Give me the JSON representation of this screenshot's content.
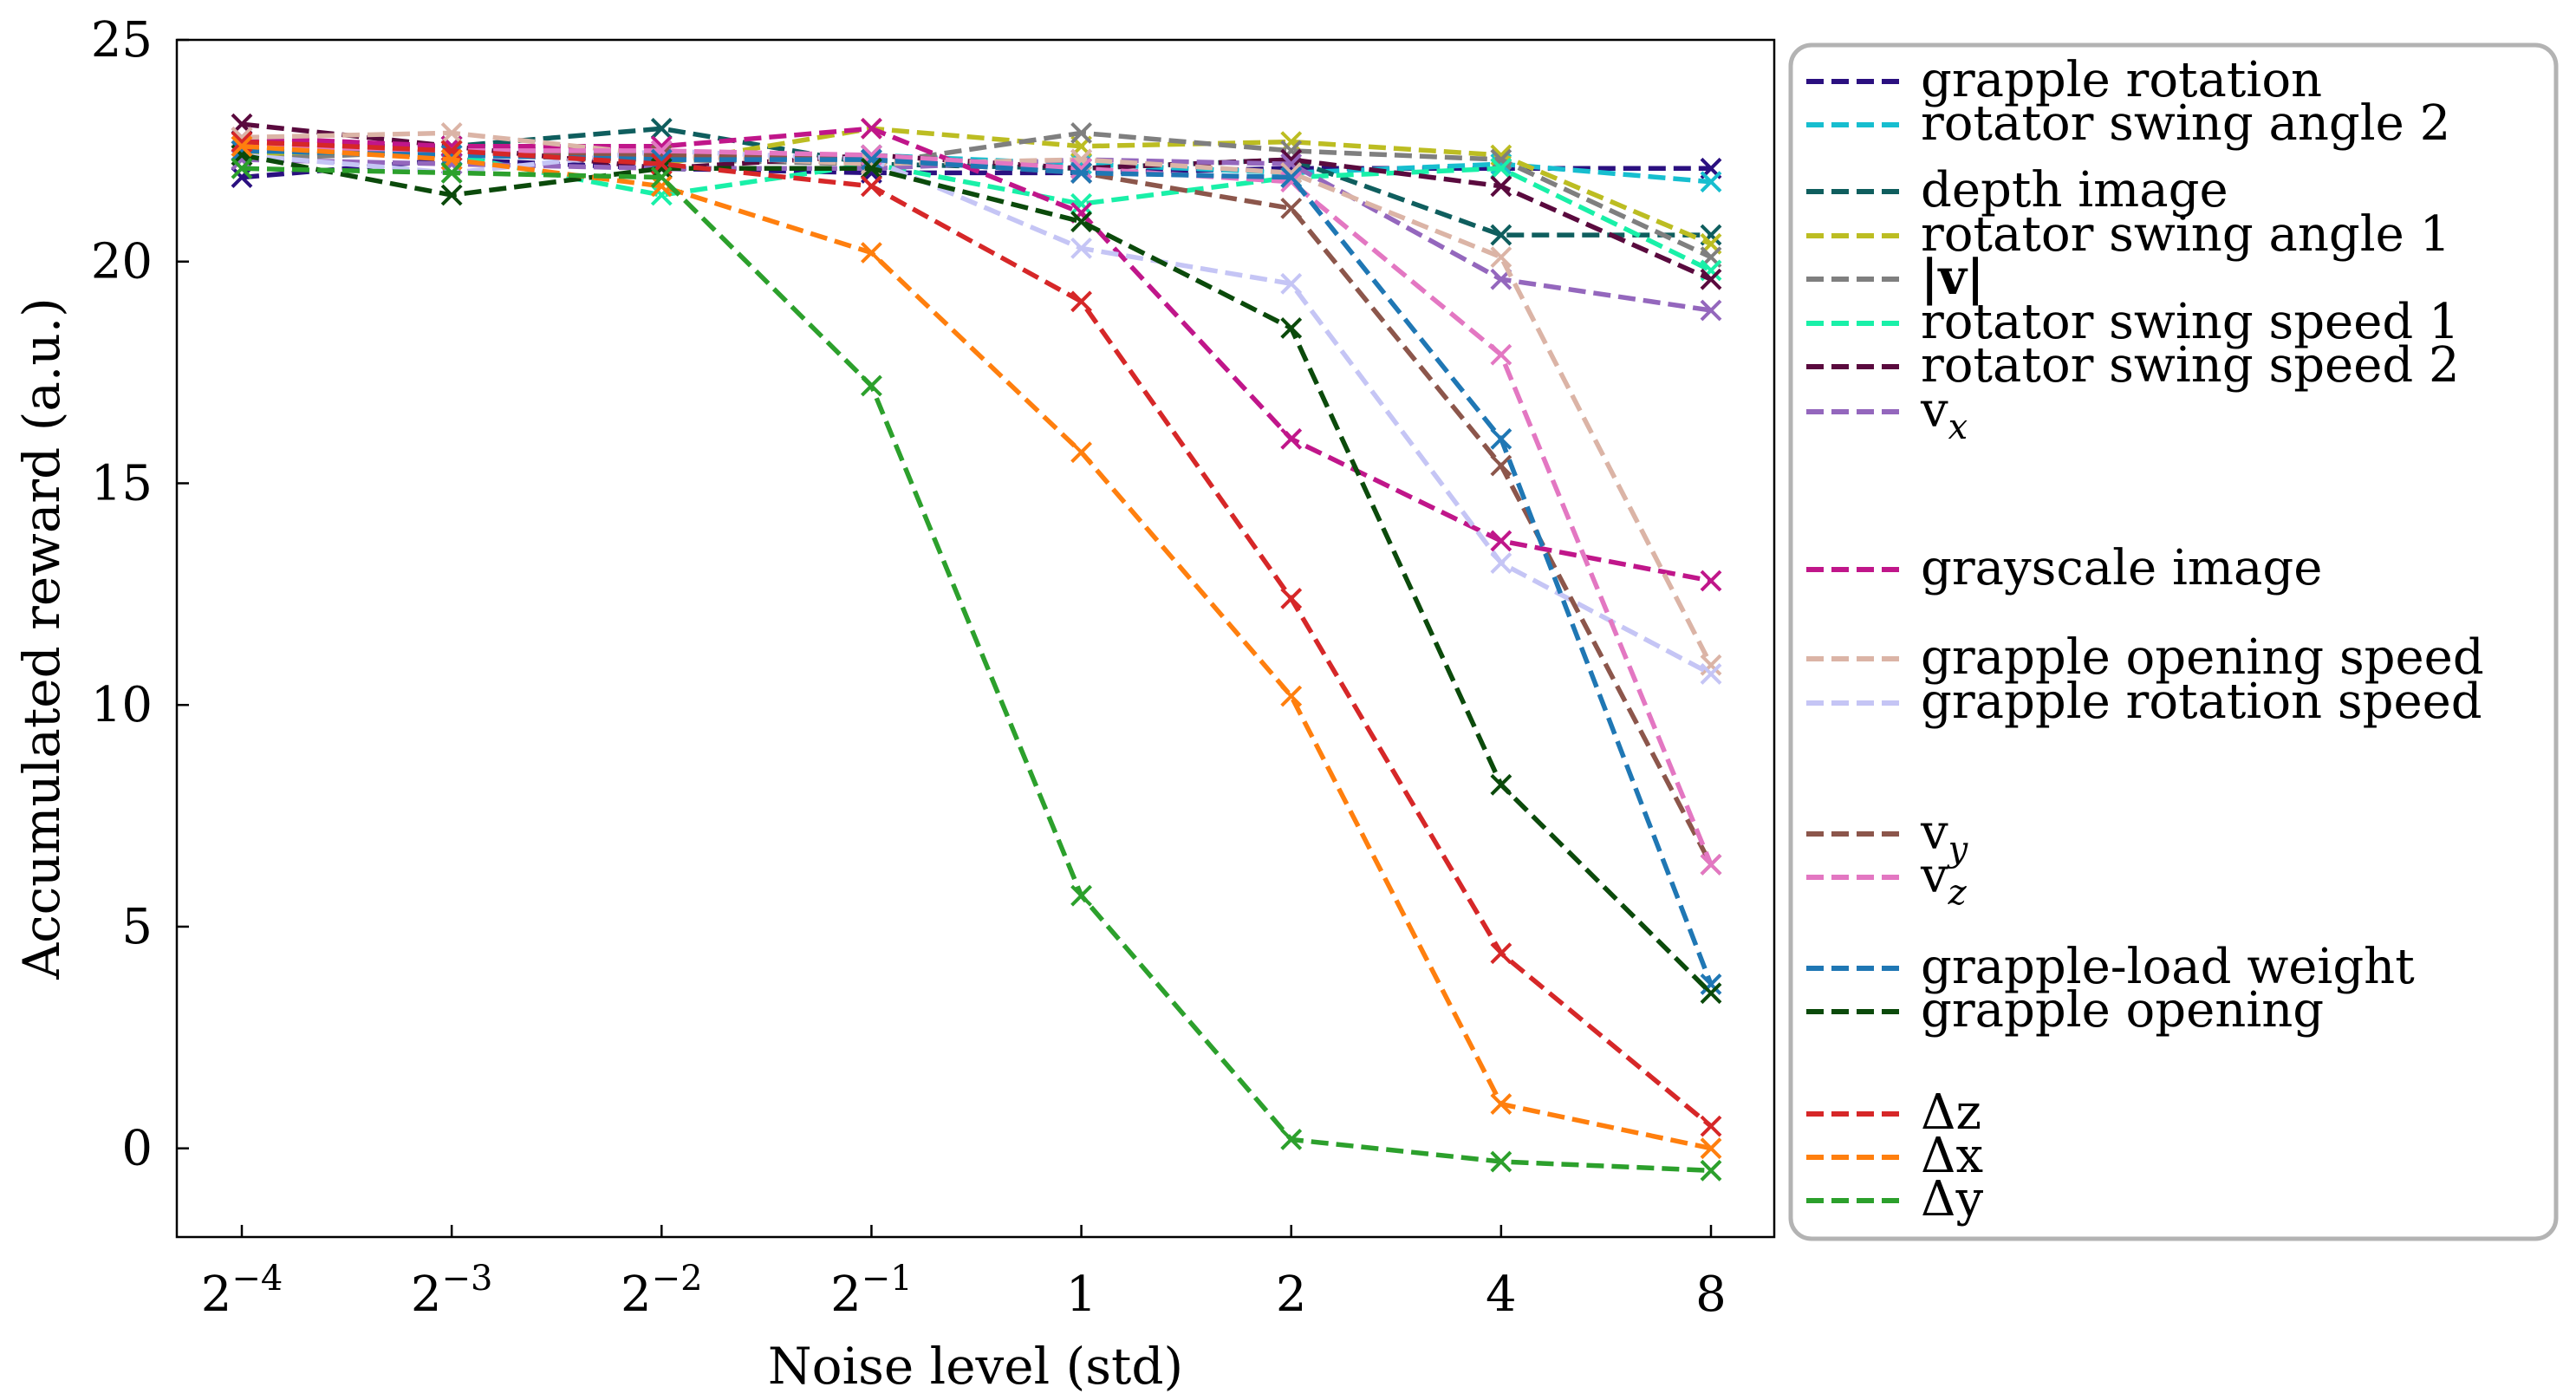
{
  "chart_data": {
    "type": "line",
    "xlabel": "Noise level (std)",
    "ylabel": "Accumulated reward (a.u.)",
    "ylim": [
      -2,
      25
    ],
    "yticks": [
      0,
      5,
      10,
      15,
      20,
      25
    ],
    "xtick_labels": [
      {
        "base": "2",
        "exp": "−4"
      },
      {
        "base": "2",
        "exp": "−3"
      },
      {
        "base": "2",
        "exp": "−2"
      },
      {
        "base": "2",
        "exp": "−1"
      },
      {
        "base": "1",
        "exp": ""
      },
      {
        "base": "2",
        "exp": ""
      },
      {
        "base": "4",
        "exp": ""
      },
      {
        "base": "8",
        "exp": ""
      }
    ],
    "marker": "x",
    "line_style": "dashed",
    "legend_placement": "outside-right",
    "series": [
      {
        "name": "grapple rotation",
        "color": "#2b1080",
        "values": [
          21.9,
          22.3,
          22.1,
          22.0,
          22.0,
          22.1,
          22.1,
          22.1
        ]
      },
      {
        "name": "rotator swing angle 2",
        "color": "#17becf",
        "values": [
          22.5,
          22.6,
          22.4,
          22.4,
          22.2,
          22.0,
          22.2,
          21.8
        ]
      },
      {
        "name": "depth image",
        "color": "#0f5e5e",
        "values": [
          22.6,
          22.6,
          23.0,
          22.2,
          22.1,
          22.3,
          20.6,
          20.6
        ]
      },
      {
        "name": "rotator swing angle 1",
        "color": "#bcbd22",
        "values": [
          22.4,
          22.5,
          22.2,
          23.0,
          22.6,
          22.7,
          22.4,
          20.4
        ]
      },
      {
        "name": "|v|",
        "color": "#7f7f7f",
        "values": [
          22.3,
          22.5,
          22.3,
          22.2,
          22.9,
          22.5,
          22.3,
          20.1
        ]
      },
      {
        "name": "rotator swing speed 1",
        "color": "#19f0a8",
        "values": [
          22.5,
          22.4,
          21.5,
          22.2,
          21.3,
          21.9,
          22.1,
          19.8
        ]
      },
      {
        "name": "rotator swing speed 2",
        "color": "#5a0a3e",
        "values": [
          23.1,
          22.6,
          22.1,
          22.4,
          22.1,
          22.3,
          21.7,
          19.6
        ]
      },
      {
        "name": "vx",
        "color": "#9467bd",
        "values": [
          22.3,
          22.2,
          22.1,
          22.1,
          22.3,
          22.2,
          19.6,
          18.9
        ]
      },
      {
        "name": "grayscale image",
        "color": "#c0168a",
        "values": [
          22.8,
          22.6,
          22.6,
          23.0,
          21.1,
          16.0,
          13.7,
          12.8
        ]
      },
      {
        "name": "grapple opening speed",
        "color": "#dbb4a6",
        "values": [
          22.8,
          22.9,
          22.4,
          22.2,
          22.3,
          22.0,
          20.1,
          10.9
        ]
      },
      {
        "name": "grapple rotation speed",
        "color": "#c5c5f5",
        "values": [
          22.4,
          22.0,
          22.5,
          22.3,
          20.3,
          19.5,
          13.2,
          10.7
        ]
      },
      {
        "name": "vy",
        "color": "#8c564b",
        "values": [
          22.5,
          22.5,
          22.4,
          22.3,
          22.0,
          21.2,
          15.4,
          6.4
        ]
      },
      {
        "name": "vz",
        "color": "#e377c2",
        "values": [
          22.6,
          22.5,
          22.5,
          22.4,
          22.1,
          21.8,
          17.9,
          6.4
        ]
      },
      {
        "name": "grapple-load weight",
        "color": "#1f77b4",
        "values": [
          22.5,
          22.4,
          22.3,
          22.3,
          22.0,
          21.9,
          16.0,
          3.7
        ]
      },
      {
        "name": "grapple opening",
        "color": "#0b4a0b",
        "values": [
          22.4,
          21.5,
          22.1,
          22.1,
          20.9,
          18.5,
          8.2,
          3.5
        ]
      },
      {
        "name": "Δz",
        "color": "#d62728",
        "values": [
          22.7,
          22.5,
          22.2,
          21.7,
          19.1,
          12.4,
          4.4,
          0.5
        ]
      },
      {
        "name": "Δx",
        "color": "#ff7f0e",
        "values": [
          22.6,
          22.3,
          21.7,
          20.2,
          15.7,
          10.2,
          1.0,
          0.0
        ]
      },
      {
        "name": "Δy",
        "color": "#2ca02c",
        "values": [
          22.1,
          22.0,
          21.9,
          17.2,
          5.7,
          0.2,
          -0.3,
          -0.5
        ]
      }
    ],
    "legend": [
      {
        "label": "grapple rotation",
        "sub": "",
        "bold": false,
        "color": "#2b1080"
      },
      {
        "label": "rotator swing angle 2",
        "sub": "",
        "bold": false,
        "color": "#17becf"
      },
      {
        "label": "depth image",
        "sub": "",
        "bold": false,
        "color": "#0f5e5e"
      },
      {
        "label": "rotator swing angle 1",
        "sub": "",
        "bold": false,
        "color": "#bcbd22"
      },
      {
        "label": "|v|",
        "sub": "",
        "bold": true,
        "color": "#7f7f7f"
      },
      {
        "label": "rotator swing speed 1",
        "sub": "",
        "bold": false,
        "color": "#19f0a8"
      },
      {
        "label": "rotator swing speed 2",
        "sub": "",
        "bold": false,
        "color": "#5a0a3e"
      },
      {
        "label": "v",
        "sub": "x",
        "bold": false,
        "color": "#9467bd"
      },
      {
        "label": "grayscale image",
        "sub": "",
        "bold": false,
        "color": "#c0168a"
      },
      {
        "label": "grapple opening speed",
        "sub": "",
        "bold": false,
        "color": "#dbb4a6"
      },
      {
        "label": "grapple rotation speed",
        "sub": "",
        "bold": false,
        "color": "#c5c5f5"
      },
      {
        "label": "v",
        "sub": "y",
        "bold": false,
        "color": "#8c564b"
      },
      {
        "label": "v",
        "sub": "z",
        "bold": false,
        "color": "#e377c2"
      },
      {
        "label": "grapple-load weight",
        "sub": "",
        "bold": false,
        "color": "#1f77b4"
      },
      {
        "label": "grapple opening",
        "sub": "",
        "bold": false,
        "color": "#0b4a0b"
      },
      {
        "label": "Δz",
        "sub": "",
        "bold": false,
        "color": "#d62728"
      },
      {
        "label": "Δx",
        "sub": "",
        "bold": false,
        "color": "#ff7f0e"
      },
      {
        "label": "Δy",
        "sub": "",
        "bold": false,
        "color": "#2ca02c"
      }
    ]
  }
}
